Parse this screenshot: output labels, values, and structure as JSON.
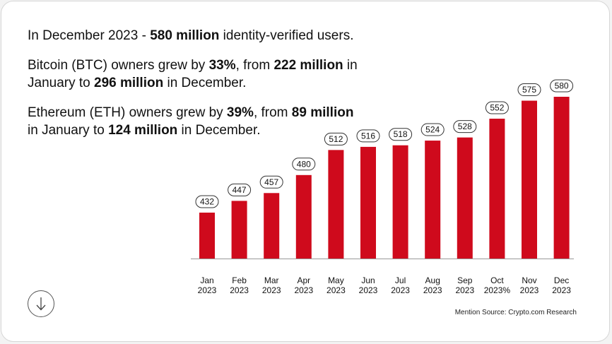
{
  "headline": {
    "prefix": "In December 2023 - ",
    "highlight": "580 million",
    "suffix": " identity-verified users."
  },
  "btc": {
    "t1": "Bitcoin (BTC) owners grew by ",
    "b1": "33%",
    "t2": ", from ",
    "b2": "222 million",
    "t3": " in January to ",
    "b3": "296 million",
    "t4": " in December."
  },
  "eth": {
    "t1": "Ethereum (ETH) owners grew by ",
    "b1": "39%",
    "t2": ", from ",
    "b2": "89 million",
    "t3": " in January to ",
    "b3": "124 million",
    "t4": " in December."
  },
  "source": "Mention Source: Crypto.com Research",
  "icons": {
    "down_button": "arrow-down-icon"
  },
  "colors": {
    "bar": "#cf0a1c",
    "baseline": "#999999"
  },
  "chart_data": {
    "type": "bar",
    "categories": [
      [
        "Jan",
        "2023"
      ],
      [
        "Feb",
        "2023"
      ],
      [
        "Mar",
        "2023"
      ],
      [
        "Apr",
        "2023"
      ],
      [
        "May",
        "2023"
      ],
      [
        "Jun",
        "2023"
      ],
      [
        "Jul",
        "2023"
      ],
      [
        "Aug",
        "2023"
      ],
      [
        "Sep",
        "2023"
      ],
      [
        "Oct",
        "2023%"
      ],
      [
        "Nov",
        "2023"
      ],
      [
        "Dec",
        "2023"
      ]
    ],
    "values": [
      432,
      447,
      457,
      480,
      512,
      516,
      518,
      524,
      528,
      552,
      575,
      580
    ],
    "data_labels": [
      "432",
      "447",
      "457",
      "480",
      "512",
      "516",
      "518",
      "524",
      "528",
      "552",
      "575",
      "580"
    ],
    "title": "",
    "xlabel": "",
    "ylabel": "",
    "grid": false,
    "legend": "none"
  }
}
